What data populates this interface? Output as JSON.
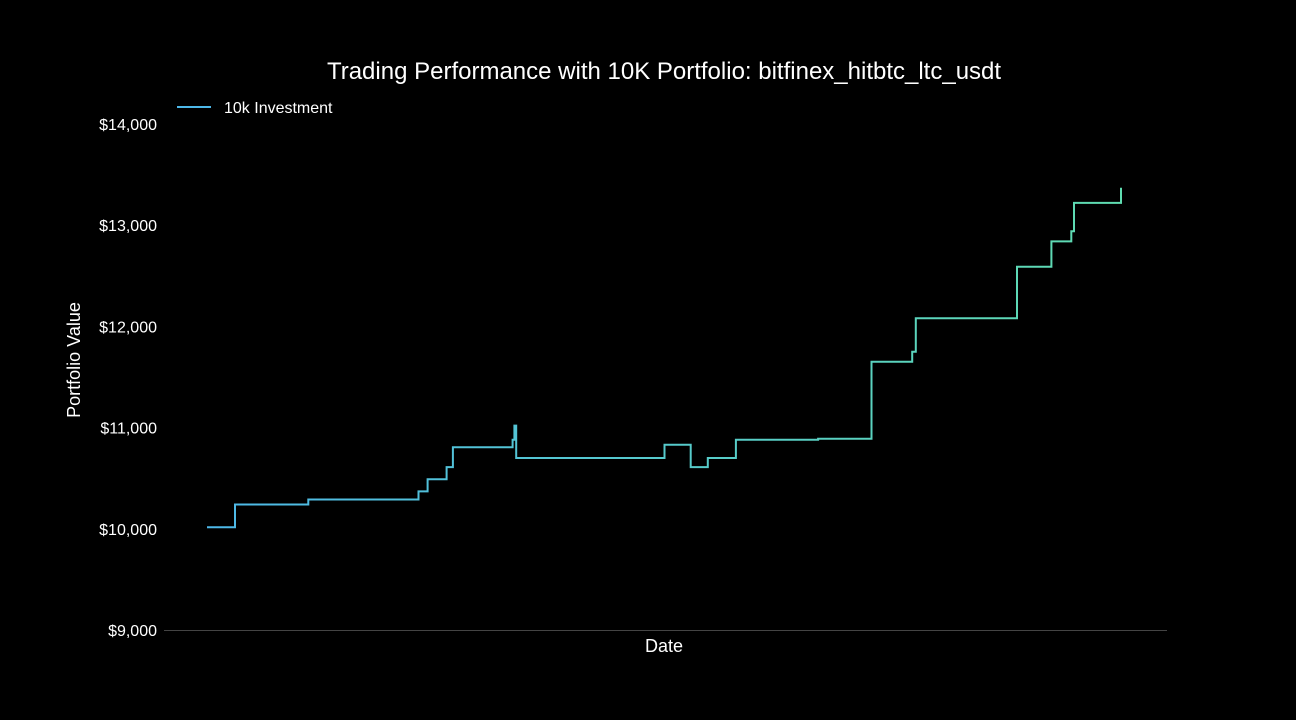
{
  "colors": {
    "background": "#000000",
    "text": "#ffffff",
    "axis_line": "#444444",
    "line_start": "#4db8e8",
    "line_end": "#5fdcb0"
  },
  "chart_data": {
    "type": "line",
    "title": "Trading Performance with 10K Portfolio: bitfinex_hitbtc_ltc_usdt",
    "xlabel": "Date",
    "ylabel": "Portfolio Value",
    "ylim": [
      9000,
      14000
    ],
    "yticks": [
      9000,
      10000,
      11000,
      12000,
      13000,
      14000
    ],
    "ytick_labels": [
      "$9,000",
      "$10,000",
      "$11,000",
      "$12,000",
      "$13,000",
      "$14,000"
    ],
    "x_tick_labels_shown": false,
    "grid": false,
    "legend": {
      "placement": "top-left",
      "entries": [
        "10k Investment"
      ]
    },
    "series": [
      {
        "name": "10k Investment",
        "step": true,
        "x": [
          0,
          3.1,
          11.2,
          23.4,
          24.4,
          26.5,
          27.2,
          33.8,
          34.0,
          34.2,
          50.6,
          53.5,
          55.4,
          58.5,
          67.6,
          73.5,
          78.0,
          78.4,
          89.6,
          93.4,
          95.6,
          95.9,
          101.1
        ],
        "y": [
          10015,
          10240,
          10290,
          10370,
          10490,
          10610,
          10805,
          10880,
          11020,
          10700,
          10830,
          10610,
          10700,
          10880,
          10890,
          11650,
          11750,
          12080,
          12590,
          12840,
          12940,
          13220,
          13370
        ]
      }
    ]
  }
}
